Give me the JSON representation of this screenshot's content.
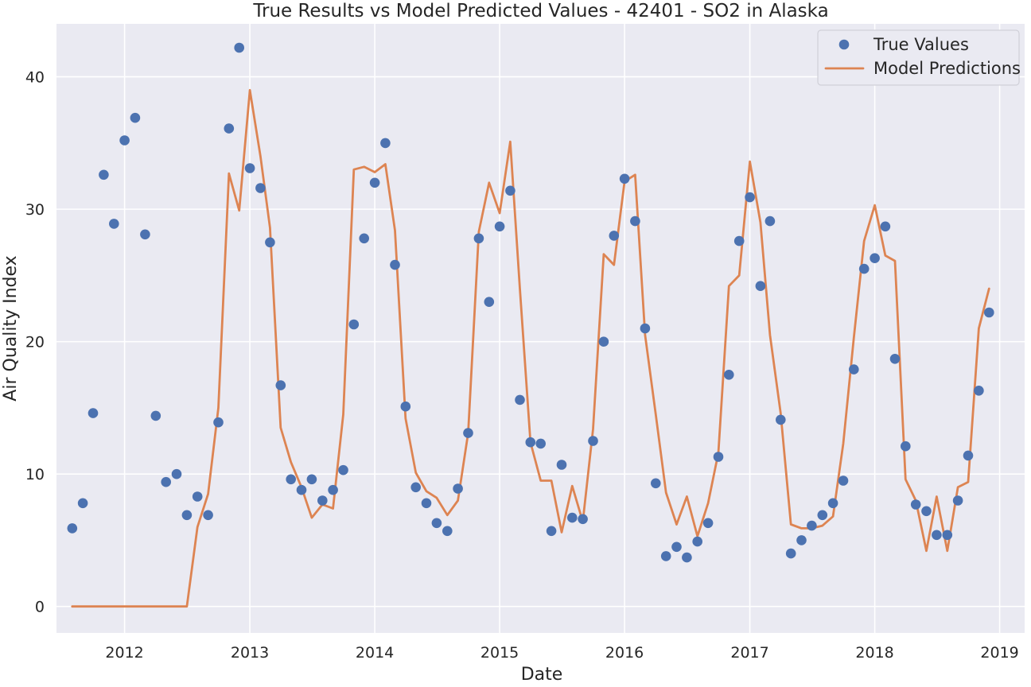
{
  "chart_data": {
    "type": "line",
    "title": "True Results vs Model Predicted Values - 42401 - SO2 in Alaska",
    "xlabel": "Date",
    "ylabel": "Air Quality Index",
    "xlim": [
      "2011-06-16",
      "2019-03-15"
    ],
    "ylim": [
      -2.0,
      44.0
    ],
    "x_ticks": [
      "2012",
      "2013",
      "2014",
      "2015",
      "2016",
      "2017",
      "2018",
      "2019"
    ],
    "y_ticks": [
      0,
      10,
      20,
      30,
      40
    ],
    "grid": true,
    "legend": "top-right",
    "x": [
      "2011-08",
      "2011-09",
      "2011-10",
      "2011-11",
      "2011-12",
      "2012-01",
      "2012-02",
      "2012-03",
      "2012-04",
      "2012-05",
      "2012-06",
      "2012-07",
      "2012-08",
      "2012-09",
      "2012-10",
      "2012-11",
      "2012-12",
      "2013-01",
      "2013-02",
      "2013-03",
      "2013-04",
      "2013-05",
      "2013-06",
      "2013-07",
      "2013-08",
      "2013-09",
      "2013-10",
      "2013-11",
      "2013-12",
      "2014-01",
      "2014-02",
      "2014-03",
      "2014-04",
      "2014-05",
      "2014-06",
      "2014-07",
      "2014-08",
      "2014-09",
      "2014-10",
      "2014-11",
      "2014-12",
      "2015-01",
      "2015-02",
      "2015-03",
      "2015-04",
      "2015-05",
      "2015-06",
      "2015-07",
      "2015-08",
      "2015-09",
      "2015-10",
      "2015-11",
      "2015-12",
      "2016-01",
      "2016-02",
      "2016-03",
      "2016-04",
      "2016-05",
      "2016-06",
      "2016-07",
      "2016-08",
      "2016-09",
      "2016-10",
      "2016-11",
      "2016-12",
      "2017-01",
      "2017-02",
      "2017-03",
      "2017-04",
      "2017-05",
      "2017-06",
      "2017-07",
      "2017-08",
      "2017-09",
      "2017-10",
      "2017-11",
      "2017-12",
      "2018-01",
      "2018-02",
      "2018-03",
      "2018-04",
      "2018-05",
      "2018-06",
      "2018-07",
      "2018-08",
      "2018-09",
      "2018-10",
      "2018-11",
      "2018-12"
    ],
    "series": [
      {
        "name": "True Values",
        "style": "markers",
        "color": "#4c72b0",
        "values": [
          5.9,
          7.8,
          14.6,
          32.6,
          28.9,
          35.2,
          36.9,
          28.1,
          14.4,
          9.4,
          10.0,
          6.9,
          8.3,
          6.9,
          13.9,
          36.1,
          42.2,
          33.1,
          31.6,
          27.5,
          16.7,
          9.6,
          8.8,
          9.6,
          8.0,
          8.8,
          10.3,
          21.3,
          27.8,
          32.0,
          35.0,
          25.8,
          15.1,
          9.0,
          7.8,
          6.3,
          5.7,
          8.9,
          13.1,
          27.8,
          23.0,
          28.7,
          31.4,
          15.6,
          12.4,
          12.3,
          5.7,
          10.7,
          6.7,
          6.6,
          12.5,
          20.0,
          28.0,
          32.3,
          29.1,
          21.0,
          9.3,
          3.8,
          4.5,
          3.7,
          4.9,
          6.3,
          11.3,
          17.5,
          27.6,
          30.9,
          24.2,
          29.1,
          14.1,
          4.0,
          5.0,
          6.1,
          6.9,
          7.8,
          9.5,
          17.9,
          25.5,
          26.3,
          28.7,
          18.7,
          12.1,
          7.7,
          7.2,
          5.4,
          5.4,
          8.0,
          11.4,
          16.3,
          22.2
        ]
      },
      {
        "name": "Model Predictions",
        "style": "line",
        "color": "#dd8452",
        "values": [
          0,
          0,
          0,
          0,
          0,
          0,
          0,
          0,
          0,
          0,
          0,
          0,
          6.0,
          8.5,
          15.0,
          32.7,
          29.9,
          39.0,
          34.0,
          28.6,
          13.5,
          10.9,
          9.0,
          6.7,
          7.7,
          7.4,
          14.5,
          33.0,
          33.2,
          32.8,
          33.4,
          28.4,
          14.2,
          10.1,
          8.7,
          8.2,
          6.9,
          8.0,
          13.1,
          28.3,
          32.0,
          29.7,
          35.1,
          24.0,
          12.4,
          9.5,
          9.5,
          5.6,
          9.1,
          6.4,
          13.4,
          26.6,
          25.8,
          32.1,
          32.6,
          20.5,
          14.5,
          8.6,
          6.2,
          8.3,
          5.3,
          7.8,
          11.6,
          24.2,
          25.0,
          33.6,
          29.0,
          20.5,
          14.6,
          6.2,
          5.9,
          5.9,
          6.1,
          6.8,
          12.3,
          20.3,
          27.6,
          30.3,
          26.5,
          26.1,
          9.6,
          8.0,
          4.2,
          8.3,
          4.2,
          9.0,
          9.4,
          21.0,
          24.0
        ]
      }
    ]
  }
}
